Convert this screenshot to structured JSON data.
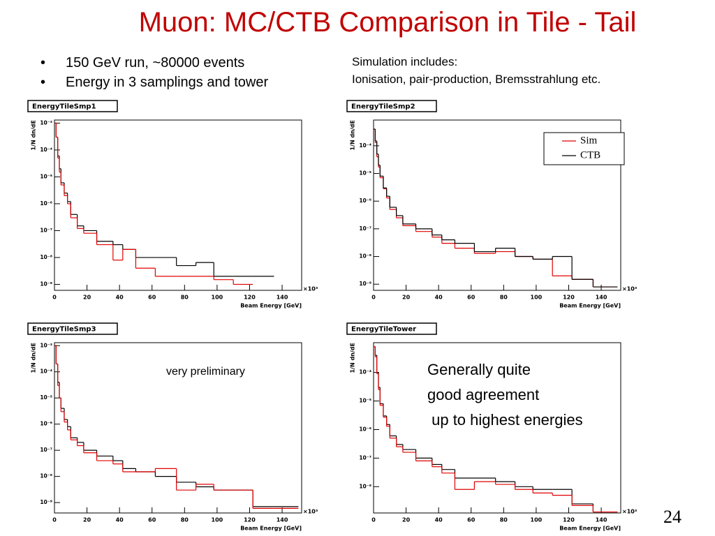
{
  "slide": {
    "title": "Muon:  MC/CTB Comparison in Tile - Tail",
    "bullets": [
      "150 GeV run, ~80000 events",
      "Energy in 3 samplings and tower"
    ],
    "note": [
      "Simulation includes:",
      "Ionisation, pair-production, Bremsstrahlung etc."
    ],
    "conclusion": [
      "Generally quite",
      "good agreement",
      " up to highest energies"
    ],
    "page_number": "24"
  },
  "chart_data": [
    {
      "type": "histogram",
      "title": "EnergyTileSmp1",
      "xlabel": "Beam Energy [GeV]",
      "ylabel": "1/N dn/dE",
      "x_multiplier": "×10³",
      "log_y": true,
      "xlim": [
        0,
        152
      ],
      "ylim": [
        6e-10,
        0.0013
      ],
      "xticks": [
        0,
        20,
        40,
        60,
        80,
        100,
        120,
        140
      ],
      "yticks": [
        {
          "value": 1e-09,
          "label": "10⁻⁹"
        },
        {
          "value": 1e-08,
          "label": "10⁻⁸"
        },
        {
          "value": 1e-07,
          "label": "10⁻⁷"
        },
        {
          "value": 1e-06,
          "label": "10⁻⁶"
        },
        {
          "value": 1e-05,
          "label": "10⁻⁵"
        },
        {
          "value": 0.0001,
          "label": "10⁻⁴"
        },
        {
          "value": 0.001,
          "label": "10⁻³"
        }
      ],
      "bins": [
        0,
        1,
        2,
        3,
        4,
        6,
        8,
        10,
        14,
        18,
        26,
        36,
        42,
        50,
        62,
        75,
        87,
        98,
        110,
        122,
        135,
        150
      ],
      "series": [
        {
          "color": "#000000",
          "values": [
            0.001,
            0.0003,
            6e-05,
            2e-05,
            6e-06,
            2.5e-06,
            1.2e-06,
            4e-07,
            1.5e-07,
            1e-07,
            4e-08,
            3e-08,
            2e-08,
            1e-08,
            1e-08,
            5e-09,
            6.5e-09,
            2e-09,
            2e-09,
            2e-09,
            null
          ]
        },
        {
          "color": "#e00000",
          "values": [
            0.001,
            0.0003,
            5e-05,
            1.5e-05,
            5e-06,
            2e-06,
            1e-06,
            3e-07,
            1.2e-07,
            8e-08,
            3e-08,
            8e-09,
            2e-08,
            4e-09,
            2e-09,
            2e-09,
            2e-09,
            1.5e-09,
            1e-09,
            null,
            null
          ]
        }
      ]
    },
    {
      "type": "histogram",
      "title": "EnergyTileSmp2",
      "xlabel": "Beam Energy [GeV]",
      "ylabel": "1/N dn/dE",
      "x_multiplier": "×10³",
      "log_y": true,
      "legend": "upper right",
      "xlim": [
        0,
        152
      ],
      "ylim": [
        6e-10,
        0.00085
      ],
      "xticks": [
        0,
        20,
        40,
        60,
        80,
        100,
        120,
        140
      ],
      "yticks": [
        {
          "value": 1e-09,
          "label": "10⁻⁹"
        },
        {
          "value": 1e-08,
          "label": "10⁻⁸"
        },
        {
          "value": 1e-07,
          "label": "10⁻⁷"
        },
        {
          "value": 1e-06,
          "label": "10⁻⁶"
        },
        {
          "value": 1e-05,
          "label": "10⁻⁵"
        },
        {
          "value": 0.0001,
          "label": "10⁻⁴"
        }
      ],
      "bins": [
        0,
        1,
        2,
        3,
        4,
        6,
        8,
        10,
        14,
        18,
        26,
        36,
        42,
        50,
        62,
        75,
        87,
        98,
        110,
        122,
        135,
        150
      ],
      "series": [
        {
          "name": "Sim",
          "color": "#e00000",
          "values": [
            0.0004,
            0.00013,
            4e-05,
            1.7e-05,
            7e-06,
            2.8e-06,
            1.3e-06,
            5e-07,
            2.5e-07,
            1.3e-07,
            8e-08,
            5e-08,
            3e-08,
            2e-08,
            1.3e-08,
            1.5e-08,
            1e-08,
            8e-09,
            2e-09,
            1.5e-09,
            8e-10
          ]
        },
        {
          "name": "CTB",
          "color": "#000000",
          "values": [
            0.0004,
            0.00015,
            5e-05,
            2e-05,
            8e-06,
            3e-06,
            1.5e-06,
            6e-07,
            3e-07,
            1.5e-07,
            1e-07,
            6e-08,
            4e-08,
            3e-08,
            1.5e-08,
            2e-08,
            1e-08,
            8e-09,
            1e-08,
            1.5e-09,
            8e-10
          ]
        }
      ]
    },
    {
      "type": "histogram",
      "title": "EnergyTileSmp3",
      "xlabel": "Beam Energy [GeV]",
      "ylabel": "1/N dn/dE",
      "x_multiplier": "×10³",
      "log_y": true,
      "annotation": "very preliminary",
      "xlim": [
        0,
        152
      ],
      "ylim": [
        4e-10,
        0.0013
      ],
      "xticks": [
        0,
        20,
        40,
        60,
        80,
        100,
        120,
        140
      ],
      "yticks": [
        {
          "value": 1e-09,
          "label": "10⁻⁹"
        },
        {
          "value": 1e-08,
          "label": "10⁻⁸"
        },
        {
          "value": 1e-07,
          "label": "10⁻⁷"
        },
        {
          "value": 1e-06,
          "label": "10⁻⁶"
        },
        {
          "value": 1e-05,
          "label": "10⁻⁵"
        },
        {
          "value": 0.0001,
          "label": "10⁻⁴"
        },
        {
          "value": 0.001,
          "label": "10⁻³"
        }
      ],
      "bins": [
        0,
        1,
        2,
        3,
        4,
        6,
        8,
        10,
        14,
        18,
        26,
        36,
        42,
        50,
        62,
        75,
        87,
        98,
        110,
        122,
        135,
        150
      ],
      "series": [
        {
          "color": "#000000",
          "values": [
            0.001,
            0.0002,
            4e-05,
            1e-05,
            4e-06,
            1.5e-06,
            8e-07,
            3e-07,
            2e-07,
            1e-07,
            6e-08,
            4e-08,
            2e-08,
            1.5e-08,
            1e-08,
            6e-09,
            4e-09,
            3e-09,
            3e-09,
            7e-10,
            7e-10
          ]
        },
        {
          "color": "#e00000",
          "values": [
            0.001,
            0.0002,
            3e-05,
            1e-05,
            3e-06,
            1.2e-06,
            6e-07,
            2.5e-07,
            1.5e-07,
            8e-08,
            4e-08,
            3e-08,
            1.5e-08,
            1.5e-08,
            2e-08,
            3e-09,
            5e-09,
            3e-09,
            3e-09,
            6e-10,
            6e-10
          ]
        }
      ]
    },
    {
      "type": "histogram",
      "title": "EnergyTileTower",
      "xlabel": "Beam Energy [GeV]",
      "ylabel": "1/N dn/dE",
      "x_multiplier": "×10³",
      "log_y": true,
      "xlim": [
        0,
        152
      ],
      "ylim": [
        1.2e-09,
        0.0011
      ],
      "xticks": [
        0,
        20,
        40,
        60,
        80,
        100,
        120,
        140
      ],
      "yticks": [
        {
          "value": 1e-08,
          "label": "10⁻⁸"
        },
        {
          "value": 1e-07,
          "label": "10⁻⁷"
        },
        {
          "value": 1e-06,
          "label": "10⁻⁶"
        },
        {
          "value": 1e-05,
          "label": "10⁻⁵"
        },
        {
          "value": 0.0001,
          "label": "10⁻⁴"
        }
      ],
      "bins": [
        0,
        1,
        2,
        3,
        4,
        6,
        8,
        10,
        14,
        18,
        26,
        36,
        42,
        50,
        62,
        75,
        87,
        98,
        110,
        122,
        135,
        150
      ],
      "series": [
        {
          "color": "#000000",
          "values": [
            0.0008,
            0.0004,
            0.0001,
            3e-05,
            8e-06,
            3e-06,
            1.5e-06,
            6e-07,
            3e-07,
            2e-07,
            1e-07,
            6e-08,
            4e-08,
            2e-08,
            2e-08,
            1.5e-08,
            1e-08,
            8e-09,
            8e-09,
            2.5e-09,
            1.3e-09
          ]
        },
        {
          "color": "#e00000",
          "values": [
            0.0008,
            0.00035,
            9e-05,
            2.5e-05,
            7e-06,
            2.7e-06,
            1.3e-06,
            5e-07,
            2.5e-07,
            1.6e-07,
            8e-08,
            5e-08,
            3e-08,
            8e-09,
            1.5e-08,
            1.2e-08,
            8e-09,
            6e-09,
            5e-09,
            2.2e-09,
            1.3e-09
          ]
        }
      ]
    }
  ]
}
